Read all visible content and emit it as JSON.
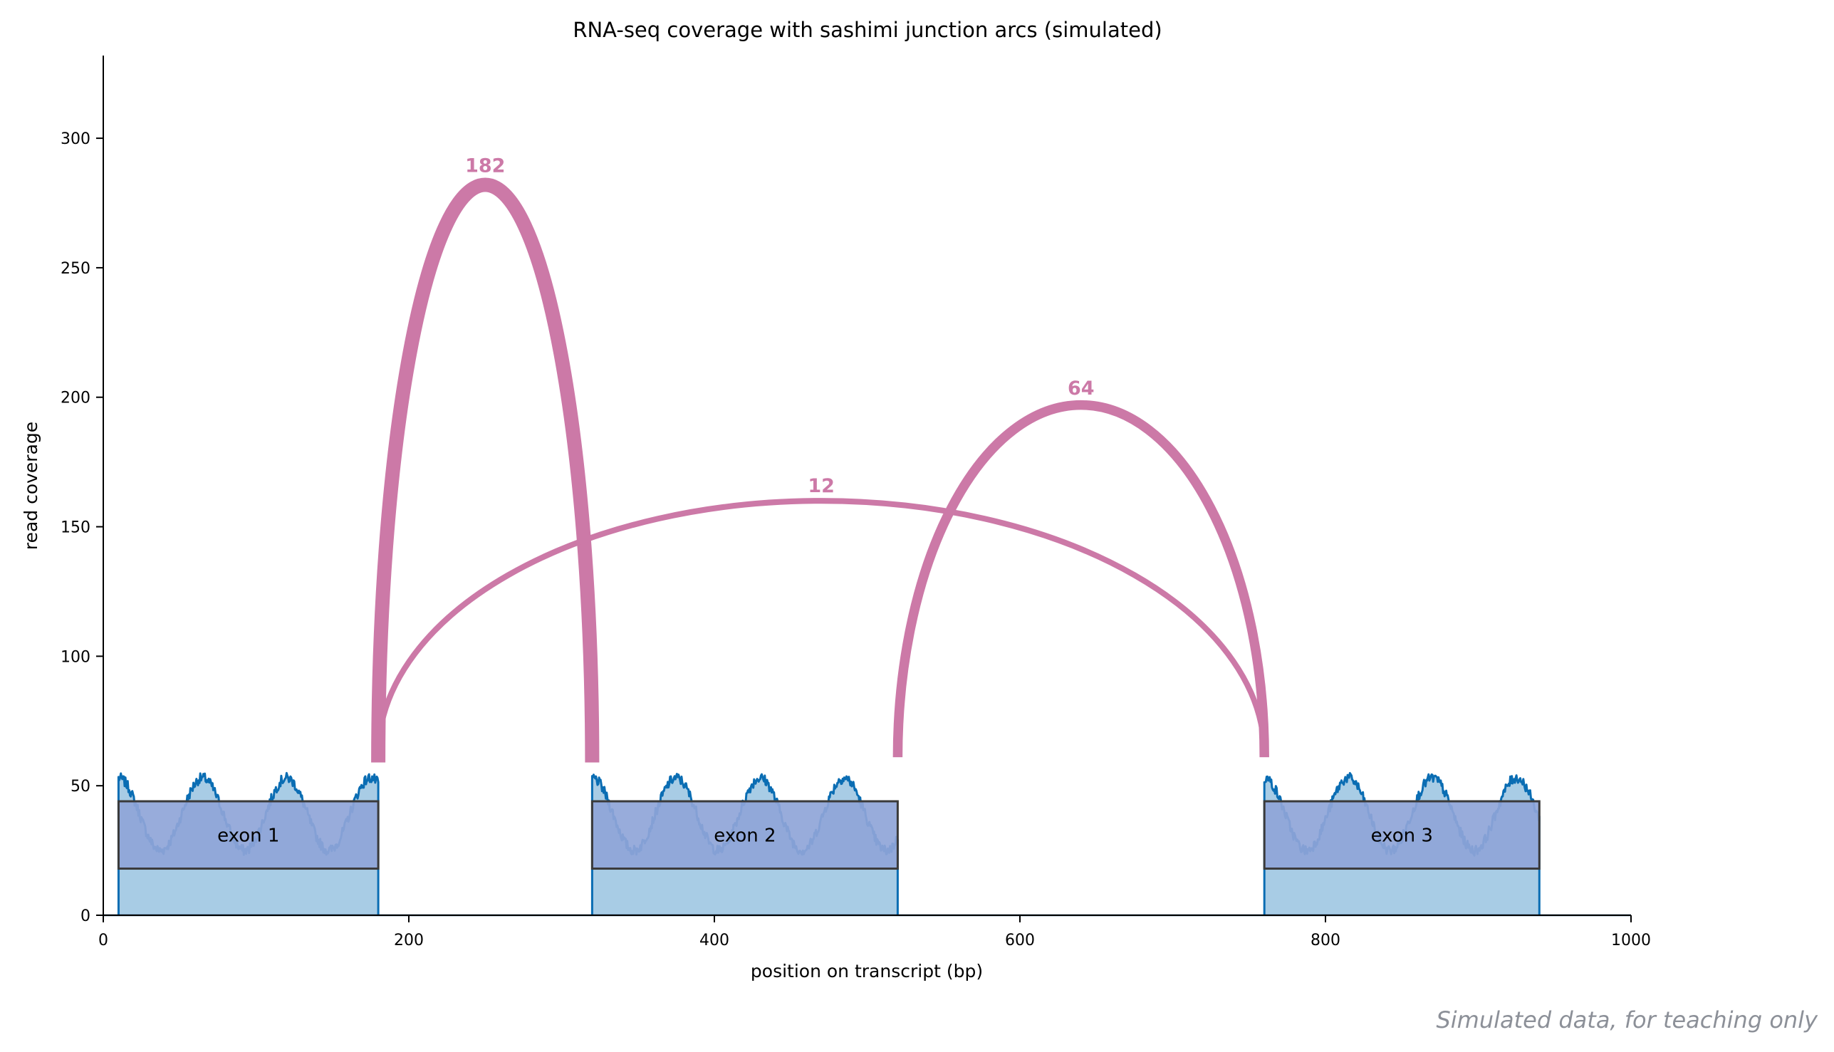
{
  "chart_data": {
    "type": "area",
    "title": "RNA-seq coverage with sashimi junction arcs (simulated)",
    "xlabel": "position on transcript (bp)",
    "ylabel": "read coverage",
    "xlim": [
      0,
      1000
    ],
    "ylim": [
      0,
      330
    ],
    "xticks": [
      0,
      200,
      400,
      600,
      800,
      1000
    ],
    "yticks": [
      0,
      50,
      100,
      150,
      200,
      250,
      300
    ],
    "grid": false,
    "exons": [
      {
        "label": "exon 1",
        "start": 10,
        "end": 180,
        "box_bottom": 18,
        "box_top": 44,
        "phase": 0.0
      },
      {
        "label": "exon 2",
        "start": 320,
        "end": 520,
        "box_bottom": 18,
        "box_top": 44,
        "phase": 0.0
      },
      {
        "label": "exon 3",
        "start": 760,
        "end": 940,
        "box_bottom": 18,
        "box_top": 44,
        "phase": 0.0
      }
    ],
    "coverage": {
      "mean": 39,
      "amplitude": 14,
      "period": 55,
      "noise": 2
    },
    "junctions": [
      {
        "label": "182",
        "start": 180,
        "end": 320,
        "base": 59,
        "peak": 282,
        "reads": 182
      },
      {
        "label": "12",
        "start": 180,
        "end": 760,
        "base": 62,
        "peak": 160,
        "reads": 12
      },
      {
        "label": "64",
        "start": 520,
        "end": 760,
        "base": 61,
        "peak": 197,
        "reads": 64
      }
    ],
    "colors": {
      "coverage_line": "#0a6db3",
      "coverage_fill": "#a8cce5",
      "exon_box": "#8fa5d8",
      "exon_edge": "#3a3a3a",
      "arc": "#cc79a7",
      "axis": "#000000",
      "baseline": "#1f4e79"
    }
  },
  "footnote": "Simulated data, for teaching only"
}
